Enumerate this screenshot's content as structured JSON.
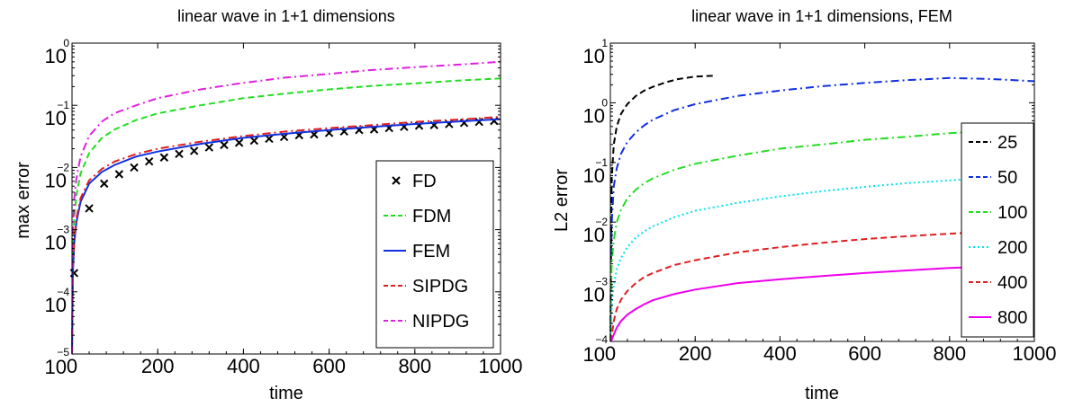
{
  "chart_data": [
    {
      "type": "line",
      "title": "linear wave in 1+1 dimensions",
      "xlabel": "time",
      "ylabel": "max error",
      "yscale": "log",
      "xlim": [
        0,
        1000
      ],
      "ylim": [
        1e-05,
        1
      ],
      "xticks": [
        "0",
        "200",
        "400",
        "600",
        "800",
        "1000"
      ],
      "yticks": [
        {
          "base": "10",
          "exp": "0"
        },
        {
          "base": "10",
          "exp": "−1"
        },
        {
          "base": "10",
          "exp": "−2"
        },
        {
          "base": "10",
          "exp": "−3"
        },
        {
          "base": "10",
          "exp": "−4"
        },
        {
          "base": "10",
          "exp": "−5"
        }
      ],
      "legend_position": "bottom-right",
      "series": [
        {
          "name": "FD",
          "color": "#000000",
          "style": "markers-x",
          "x": [
            5,
            40,
            75,
            110,
            145,
            180,
            215,
            250,
            285,
            320,
            355,
            390,
            425,
            460,
            495,
            530,
            565,
            600,
            635,
            670,
            705,
            740,
            775,
            810,
            845,
            880,
            915,
            950,
            985
          ],
          "y": [
            0.0002,
            0.0022,
            0.0055,
            0.0078,
            0.01,
            0.0125,
            0.0145,
            0.0165,
            0.0185,
            0.021,
            0.023,
            0.025,
            0.027,
            0.029,
            0.031,
            0.033,
            0.034,
            0.036,
            0.038,
            0.04,
            0.041,
            0.043,
            0.045,
            0.047,
            0.048,
            0.05,
            0.052,
            0.054,
            0.056
          ]
        },
        {
          "name": "FDM",
          "color": "#22dd22",
          "style": "dashed",
          "x": [
            0,
            2,
            5,
            10,
            20,
            40,
            70,
            100,
            150,
            200,
            300,
            400,
            500,
            600,
            700,
            800,
            900,
            1000
          ],
          "y": [
            1e-05,
            0.0005,
            0.0015,
            0.0035,
            0.008,
            0.017,
            0.03,
            0.041,
            0.058,
            0.074,
            0.1,
            0.13,
            0.155,
            0.18,
            0.205,
            0.225,
            0.25,
            0.27
          ]
        },
        {
          "name": "FEM",
          "color": "#1030e0",
          "style": "solid",
          "x": [
            0,
            2,
            5,
            10,
            20,
            40,
            70,
            100,
            150,
            200,
            300,
            400,
            500,
            600,
            700,
            800,
            900,
            1000
          ],
          "y": [
            1e-05,
            0.0002,
            0.0006,
            0.0013,
            0.0028,
            0.0055,
            0.0085,
            0.011,
            0.015,
            0.018,
            0.024,
            0.03,
            0.035,
            0.04,
            0.045,
            0.05,
            0.055,
            0.06
          ]
        },
        {
          "name": "SIPDG",
          "color": "#dd2020",
          "style": "dashdot",
          "x": [
            0,
            2,
            5,
            10,
            20,
            40,
            70,
            100,
            150,
            200,
            300,
            400,
            500,
            600,
            700,
            800,
            900,
            1000
          ],
          "y": [
            1e-05,
            0.00025,
            0.0007,
            0.0015,
            0.0032,
            0.0062,
            0.0095,
            0.0125,
            0.0165,
            0.02,
            0.026,
            0.032,
            0.038,
            0.043,
            0.048,
            0.054,
            0.059,
            0.065
          ]
        },
        {
          "name": "NIPDG",
          "color": "#e020e0",
          "style": "dashdot",
          "x": [
            0,
            2,
            5,
            10,
            20,
            40,
            70,
            100,
            150,
            200,
            300,
            400,
            500,
            600,
            700,
            800,
            900,
            1000
          ],
          "y": [
            1e-05,
            0.001,
            0.003,
            0.0065,
            0.015,
            0.032,
            0.055,
            0.075,
            0.1,
            0.13,
            0.18,
            0.23,
            0.28,
            0.32,
            0.37,
            0.41,
            0.45,
            0.5
          ]
        }
      ]
    },
    {
      "type": "line",
      "title": "linear wave in 1+1 dimensions, FEM",
      "xlabel": "time",
      "ylabel": "L2 error",
      "yscale": "log",
      "xlim": [
        0,
        1000
      ],
      "ylim": [
        0.0001,
        10
      ],
      "xticks": [
        "0",
        "200",
        "400",
        "600",
        "800",
        "1000"
      ],
      "yticks": [
        {
          "base": "10",
          "exp": "1"
        },
        {
          "base": "10",
          "exp": "0"
        },
        {
          "base": "10",
          "exp": "−1"
        },
        {
          "base": "10",
          "exp": "−2"
        },
        {
          "base": "10",
          "exp": "−3"
        },
        {
          "base": "10",
          "exp": "−4"
        }
      ],
      "legend_position": "right",
      "series": [
        {
          "name": "25",
          "color": "#000000",
          "style": "dashed",
          "x": [
            0,
            3,
            8,
            15,
            25,
            40,
            60,
            80,
            100,
            130,
            160,
            200,
            250
          ],
          "y": [
            0.0001,
            0.05,
            0.2,
            0.4,
            0.65,
            0.95,
            1.3,
            1.6,
            1.85,
            2.2,
            2.5,
            2.75,
            2.85
          ]
        },
        {
          "name": "50",
          "color": "#1030e0",
          "style": "dashdot",
          "x": [
            0,
            3,
            8,
            15,
            25,
            40,
            60,
            80,
            100,
            150,
            200,
            300,
            400,
            500,
            600,
            700,
            800,
            900,
            1000
          ],
          "y": [
            0.0001,
            0.009,
            0.04,
            0.08,
            0.14,
            0.22,
            0.32,
            0.42,
            0.52,
            0.75,
            0.95,
            1.3,
            1.6,
            1.9,
            2.15,
            2.4,
            2.6,
            2.5,
            2.3
          ]
        },
        {
          "name": "100",
          "color": "#22dd22",
          "style": "dashdot",
          "x": [
            0,
            3,
            8,
            15,
            25,
            40,
            60,
            80,
            100,
            150,
            200,
            300,
            400,
            500,
            600,
            700,
            800,
            900,
            1000
          ],
          "y": [
            0.0001,
            0.002,
            0.005,
            0.01,
            0.016,
            0.025,
            0.035,
            0.045,
            0.054,
            0.075,
            0.095,
            0.13,
            0.17,
            0.2,
            0.24,
            0.27,
            0.31,
            0.34,
            0.37
          ]
        },
        {
          "name": "200",
          "color": "#00e5ee",
          "style": "dotted",
          "x": [
            0,
            3,
            8,
            15,
            25,
            40,
            60,
            80,
            100,
            150,
            200,
            300,
            400,
            500,
            600,
            700,
            800,
            900,
            1000
          ],
          "y": [
            0.0001,
            0.0004,
            0.0009,
            0.0016,
            0.0025,
            0.0038,
            0.0055,
            0.007,
            0.0085,
            0.012,
            0.0155,
            0.021,
            0.027,
            0.033,
            0.039,
            0.045,
            0.05,
            0.056,
            0.062
          ]
        },
        {
          "name": "400",
          "color": "#dd2020",
          "style": "dashed",
          "x": [
            0,
            3,
            8,
            15,
            25,
            40,
            60,
            80,
            100,
            150,
            200,
            300,
            400,
            500,
            600,
            700,
            800,
            900,
            1000
          ],
          "y": [
            0.0001,
            0.00012,
            0.00022,
            0.00035,
            0.0005,
            0.0007,
            0.00095,
            0.0012,
            0.0014,
            0.0019,
            0.0023,
            0.0031,
            0.0038,
            0.0045,
            0.0052,
            0.0058,
            0.0064,
            0.007,
            0.0076
          ]
        },
        {
          "name": "800",
          "color": "#ee00ee",
          "style": "solid",
          "x": [
            0,
            3,
            8,
            15,
            25,
            40,
            60,
            80,
            100,
            150,
            200,
            300,
            400,
            500,
            600,
            700,
            800,
            900,
            1000
          ],
          "y": [
            0.0001,
            0.000105,
            0.00013,
            0.00017,
            0.00022,
            0.00028,
            0.00035,
            0.00042,
            0.00049,
            0.00062,
            0.00074,
            0.00095,
            0.0011,
            0.00125,
            0.0014,
            0.00155,
            0.0017,
            0.0018,
            0.0019
          ]
        }
      ]
    }
  ]
}
